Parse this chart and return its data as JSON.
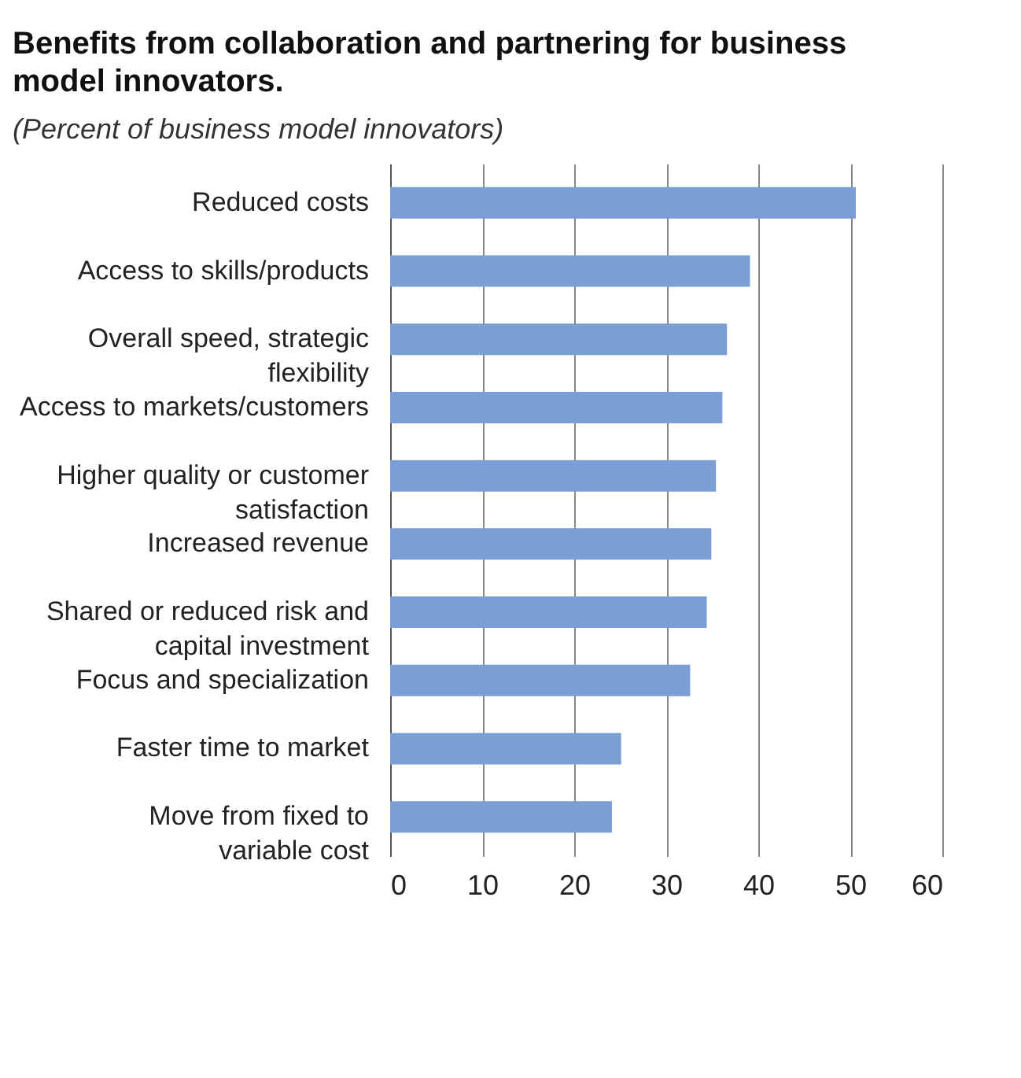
{
  "chart_data": {
    "type": "bar",
    "orientation": "horizontal",
    "title": "Benefits from collaboration and partnering for business\nmodel innovators.",
    "subtitle": "(Percent of business model innovators)",
    "categories": [
      "Reduced costs",
      "Access to skills/products",
      "Overall speed, strategic\nflexibility",
      "Access to markets/customers",
      "Higher quality or customer\nsatisfaction",
      "Increased revenue",
      "Shared or reduced risk and\ncapital investment",
      "Focus and specialization",
      "Faster time to market",
      "Move from fixed to\nvariable cost"
    ],
    "values": [
      50.6,
      39.1,
      36.6,
      36.1,
      35.4,
      34.9,
      34.4,
      32.6,
      25.1,
      24.1
    ],
    "color": "#7b9fd4",
    "xlim": [
      0,
      60
    ],
    "xticks": [
      0,
      10,
      20,
      30,
      40,
      50,
      60
    ],
    "grid": "x"
  }
}
